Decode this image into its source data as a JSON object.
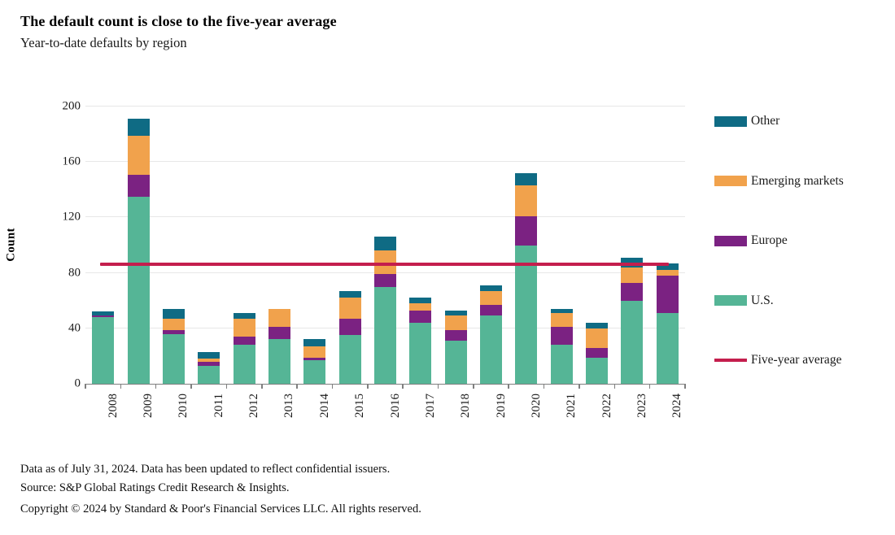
{
  "header": {
    "title": "The default count is close to the five-year average",
    "subtitle": "Year-to-date defaults by region"
  },
  "chart_data": {
    "type": "bar",
    "stacked": true,
    "title": "The default count is close to the five-year average",
    "subtitle": "Year-to-date defaults by region",
    "xlabel": "",
    "ylabel": "Count",
    "ylim": [
      0,
      200
    ],
    "yticks": [
      0,
      40,
      80,
      120,
      160,
      200
    ],
    "grid": true,
    "legend_position": "right",
    "categories": [
      "2008",
      "2009",
      "2010",
      "2011",
      "2012",
      "2013",
      "2014",
      "2015",
      "2016",
      "2017",
      "2018",
      "2019",
      "2020",
      "2021",
      "2022",
      "2023",
      "2024"
    ],
    "series": [
      {
        "name": "U.S.",
        "color": "#55b596",
        "values": [
          48,
          135,
          36,
          13,
          28,
          32,
          17,
          35,
          70,
          44,
          31,
          49,
          100,
          28,
          19,
          60,
          51
        ]
      },
      {
        "name": "Europe",
        "color": "#7b2282",
        "values": [
          1,
          16,
          3,
          3,
          6,
          9,
          2,
          12,
          9,
          9,
          8,
          8,
          21,
          13,
          7,
          13,
          27
        ]
      },
      {
        "name": "Emerging markets",
        "color": "#f1a24c",
        "values": [
          0,
          28,
          8,
          2,
          13,
          13,
          8,
          15,
          17,
          5,
          10,
          10,
          22,
          10,
          14,
          11,
          4
        ]
      },
      {
        "name": "Other",
        "color": "#0f6b84",
        "values": [
          3,
          12,
          7,
          5,
          4,
          0,
          5,
          5,
          10,
          4,
          4,
          4,
          9,
          3,
          4,
          7,
          5
        ]
      }
    ],
    "totals": [
      52,
      191,
      54,
      23,
      51,
      54,
      32,
      67,
      106,
      62,
      53,
      71,
      152,
      54,
      44,
      91,
      87
    ],
    "reference_line": {
      "name": "Five-year average",
      "value": 86,
      "color": "#c41e4d"
    }
  },
  "footer": {
    "line1": "Data as of July 31, 2024. Data has been updated to reflect confidential issuers.",
    "line2": "Source: S&P Global Ratings Credit Research & Insights.",
    "line3": "Copyright © 2024 by Standard & Poor's Financial Services LLC. All rights reserved."
  }
}
